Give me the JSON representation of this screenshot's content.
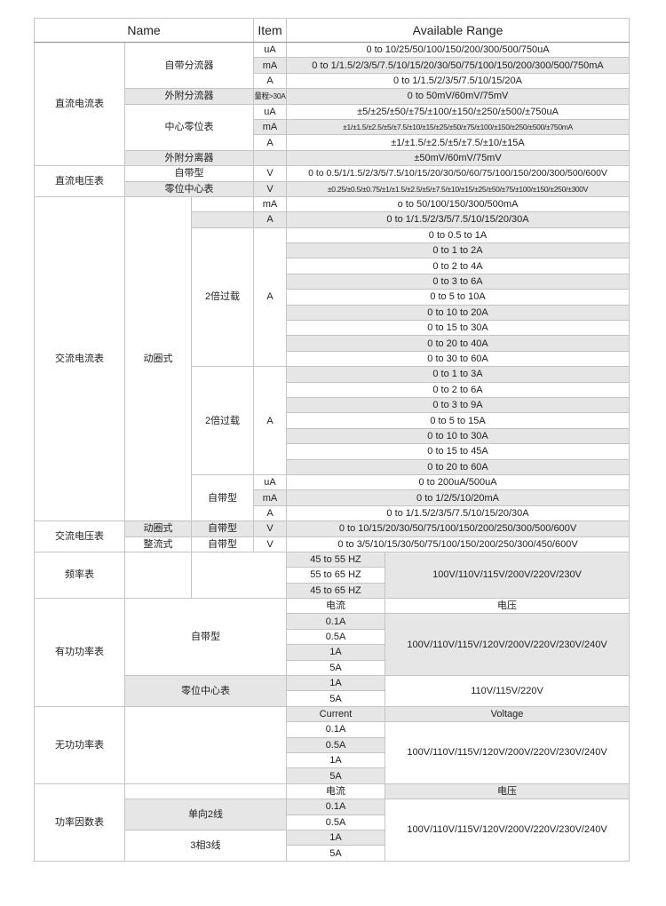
{
  "header": {
    "name": "Name",
    "item": "Item",
    "range": "Available Range"
  },
  "dc_ammeter": {
    "label": "直流电流表",
    "builtin_shunt": {
      "label": "自带分流器",
      "rows": [
        {
          "item": "uA",
          "range": "0 to 10/25/50/100/150/200/300/500/750uA"
        },
        {
          "item": "mA",
          "range": "0 to 1/1.5/2/3/5/7.5/10/15/20/30/50/75/100/150/200/300/500/750mA"
        },
        {
          "item": "A",
          "range": "0 to 1/1.5/2/3/5/7.5/10/15/20A"
        }
      ]
    },
    "external_shunt": {
      "label": "外附分流器",
      "item": "量程>30A",
      "range": "0 to 50mV/60mV/75mV"
    },
    "center_zero": {
      "label": "中心零位表",
      "rows": [
        {
          "item": "uA",
          "range": "±5/±25/±50/±75/±100/±150/±250/±500/±750uA"
        },
        {
          "item": "mA",
          "range": "±1/±1.5/±2.5/±5/±7.5/±10/±15/±25/±50/±75/±100/±150/±250/±500/±750mA"
        },
        {
          "item": "A",
          "range": "±1/±1.5/±2.5/±5/±7.5/±10/±15A"
        }
      ]
    },
    "external_divider": {
      "label": "外附分离器",
      "item": "",
      "range": "±50mV/60mV/75mV"
    }
  },
  "dc_voltmeter": {
    "label": "直流电压表",
    "rows": [
      {
        "label": "自带型",
        "item": "V",
        "range": "0 to 0.5/1/1.5/2/3/5/7.5/10/15/20/30/50/60/75/100/150/200/300/500/600V"
      },
      {
        "label": "零位中心表",
        "item": "V",
        "range": "±0.25/±0.5/±0.75/±1/±1.5/±2.5/±5/±7.5/±10/±15/±25/±50/±75/±100/±150/±250/±300V"
      }
    ]
  },
  "ac_ammeter": {
    "label": "交流电流表",
    "type": "动圈式",
    "top_rows": [
      {
        "item": "mA",
        "range": "o to 50/100/150/300/500mA"
      },
      {
        "item": "A",
        "range": "0 to 1/1.5/2/3/5/7.5/10/15/20/30A"
      }
    ],
    "overload1": {
      "label": "2倍过载",
      "item": "A",
      "ranges": [
        "0 to 0.5 to 1A",
        "0 to 1 to 2A",
        "0 to 2 to 4A",
        "0 to 3 to 6A",
        "0 to 5 to 10A",
        "0 to 10 to 20A",
        "0 to 15 to 30A",
        "0 to 20 to 40A",
        "0 to 30 to 60A"
      ]
    },
    "overload2": {
      "label": "2倍过载",
      "item": "A",
      "ranges": [
        "0 to 1 to 3A",
        "0 to 2 to 6A",
        "0 to 3 to 9A",
        "0 to 5 to 15A",
        "0 to 10 to 30A",
        "0 to 15 to 45A",
        "0 to 20 to 60A"
      ]
    },
    "builtin": {
      "label": "自带型",
      "rows": [
        {
          "item": "uA",
          "range": "0 to 200uA/500uA"
        },
        {
          "item": "mA",
          "range": "0 to 1/2/5/10/20mA"
        },
        {
          "item": "A",
          "range": "0 to 1/1.5/2/3/5/7.5/10/15/20/30A"
        }
      ]
    }
  },
  "ac_voltmeter": {
    "label": "交流电压表",
    "rows": [
      {
        "type": "动圈式",
        "sub": "自带型",
        "item": "V",
        "range": "0 to 10/15/20/30/50/75/100/150/200/250/300/500/600V"
      },
      {
        "type": "整流式",
        "sub": "自带型",
        "item": "V",
        "range": "0 to 3/5/10/15/30/50/75/100/150/200/250/300/450/600V"
      }
    ]
  },
  "frequency_meter": {
    "label": "频率表",
    "ranges": [
      "45 to 55 HZ",
      "55 to 65 HZ",
      "45 to 65 HZ"
    ],
    "voltage": "100V/110V/115V/200V/220V/230V"
  },
  "active_power": {
    "label": "有功功率表",
    "current_header": "电流",
    "voltage_header": "电压",
    "builtin": {
      "label": "自带型",
      "currents": [
        "0.1A",
        "0.5A",
        "1A",
        "5A"
      ],
      "voltage": "100V/110V/115V/120V/200V/220V/230V/240V"
    },
    "center_zero": {
      "label": "零位中心表",
      "currents": [
        "1A",
        "5A"
      ],
      "voltage": "110V/115V/220V"
    }
  },
  "reactive_power": {
    "label": "无功功率表",
    "current_header": "Current",
    "voltage_header": "Voltage",
    "currents": [
      "0.1A",
      "0.5A",
      "1A",
      "5A"
    ],
    "voltage": "100V/110V/115V/120V/200V/220V/230V/240V"
  },
  "power_factor": {
    "label": "功率因数表",
    "current_header": "电流",
    "voltage_header": "电压",
    "single": {
      "label": "单向2线",
      "currents": [
        "0.1A",
        "0.5A"
      ]
    },
    "three": {
      "label": "3相3线",
      "currents": [
        "1A",
        "5A"
      ]
    },
    "voltage": "100V/110V/115V/120V/200V/220V/230V/240V"
  }
}
